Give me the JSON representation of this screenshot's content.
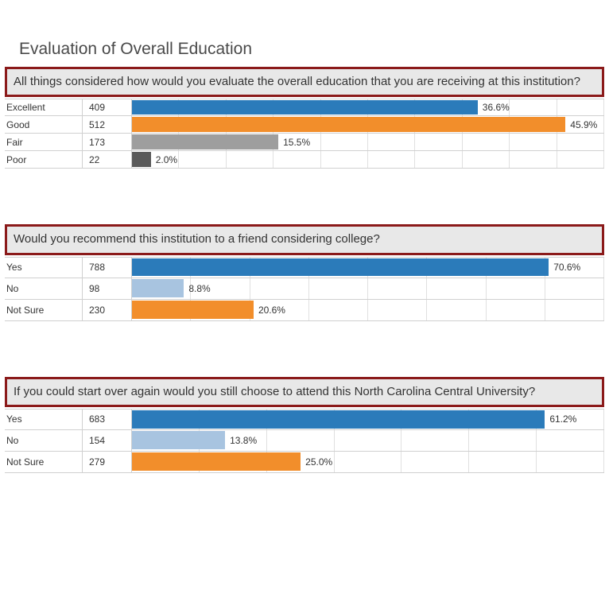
{
  "page_title": "Evaluation of Overall Education",
  "colors": {
    "question_border": "#8b1a1a",
    "question_bg": "#e8e8e8",
    "grid": "#e0e0e0",
    "row_border": "#d0d0d0",
    "text": "#333333"
  },
  "sections": [
    {
      "question": "All things considered how would you evaluate the overall education that you are receiving at this institution?",
      "row_height": "short",
      "x_max": 50,
      "gridlines": 10,
      "rows": [
        {
          "label": "Excellent",
          "count": 409,
          "pct": 36.6,
          "pct_text": "36.6%",
          "color": "#2b7bba"
        },
        {
          "label": "Good",
          "count": 512,
          "pct": 45.9,
          "pct_text": "45.9%",
          "color": "#f28e2b"
        },
        {
          "label": "Fair",
          "count": 173,
          "pct": 15.5,
          "pct_text": "15.5%",
          "color": "#9e9e9e"
        },
        {
          "label": "Poor",
          "count": 22,
          "pct": 2.0,
          "pct_text": "2.0%",
          "color": "#5a5a5a"
        }
      ]
    },
    {
      "question": "Would you recommend this institution to a friend considering college?",
      "row_height": "tall",
      "x_max": 80,
      "gridlines": 8,
      "rows": [
        {
          "label": "Yes",
          "count": 788,
          "pct": 70.6,
          "pct_text": "70.6%",
          "color": "#2b7bba"
        },
        {
          "label": "No",
          "count": 98,
          "pct": 8.8,
          "pct_text": "8.8%",
          "color": "#a8c4e0"
        },
        {
          "label": "Not Sure",
          "count": 230,
          "pct": 20.6,
          "pct_text": "20.6%",
          "color": "#f28e2b"
        }
      ]
    },
    {
      "question": "If you could start over again would you still choose to attend this North Carolina Central University?",
      "row_height": "tall",
      "x_max": 70,
      "gridlines": 7,
      "rows": [
        {
          "label": "Yes",
          "count": 683,
          "pct": 61.2,
          "pct_text": "61.2%",
          "color": "#2b7bba"
        },
        {
          "label": "No",
          "count": 154,
          "pct": 13.8,
          "pct_text": "13.8%",
          "color": "#a8c4e0"
        },
        {
          "label": "Not Sure",
          "count": 279,
          "pct": 25.0,
          "pct_text": "25.0%",
          "color": "#f28e2b"
        }
      ]
    }
  ]
}
